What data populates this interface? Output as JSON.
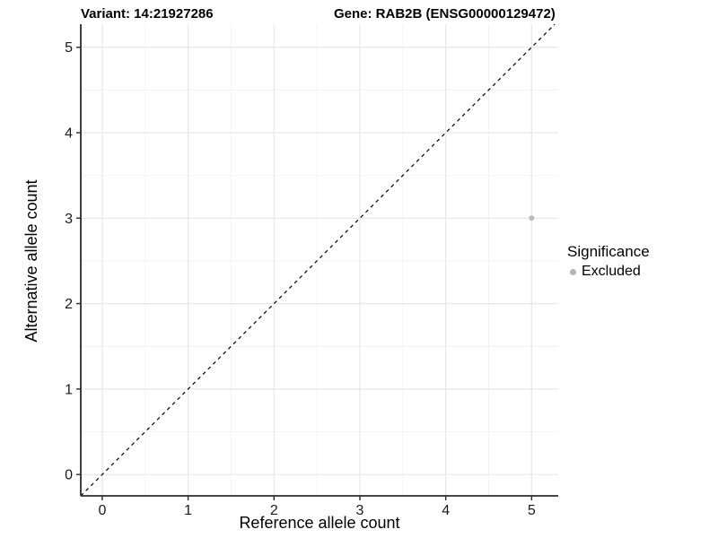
{
  "chart_data": {
    "type": "scatter",
    "title_left": "Variant: 14:21927286",
    "title_right": "Gene: RAB2B (ENSG00000129472)",
    "xlabel": "Reference allele count",
    "ylabel": "Alternative allele count",
    "xlim": [
      -0.25,
      5.31
    ],
    "ylim": [
      -0.25,
      5.27
    ],
    "x_ticks": [
      0,
      1,
      2,
      3,
      4,
      5
    ],
    "y_ticks": [
      0,
      1,
      2,
      3,
      4,
      5
    ],
    "minor_ticks": [
      0.5,
      1.5,
      2.5,
      3.5,
      4.5
    ],
    "grid": true,
    "points": [
      {
        "x": 5,
        "y": 3,
        "significance": "Excluded"
      }
    ],
    "identity_line": {
      "style": "dashed",
      "from": -0.25,
      "to": 5.27
    },
    "legend": {
      "position": "right",
      "title": "Significance",
      "items": [
        {
          "label": "Excluded",
          "color": "#b5b5b5"
        }
      ]
    },
    "colors": {
      "point": "#bcbcbc",
      "major_grid": "#e7e7e7",
      "minor_grid": "#f2f2f2",
      "axis": "#2b2b2b",
      "tick_label": "#1a1a1a",
      "dash_line": "#000000",
      "panel_bg": "#ffffff"
    }
  }
}
